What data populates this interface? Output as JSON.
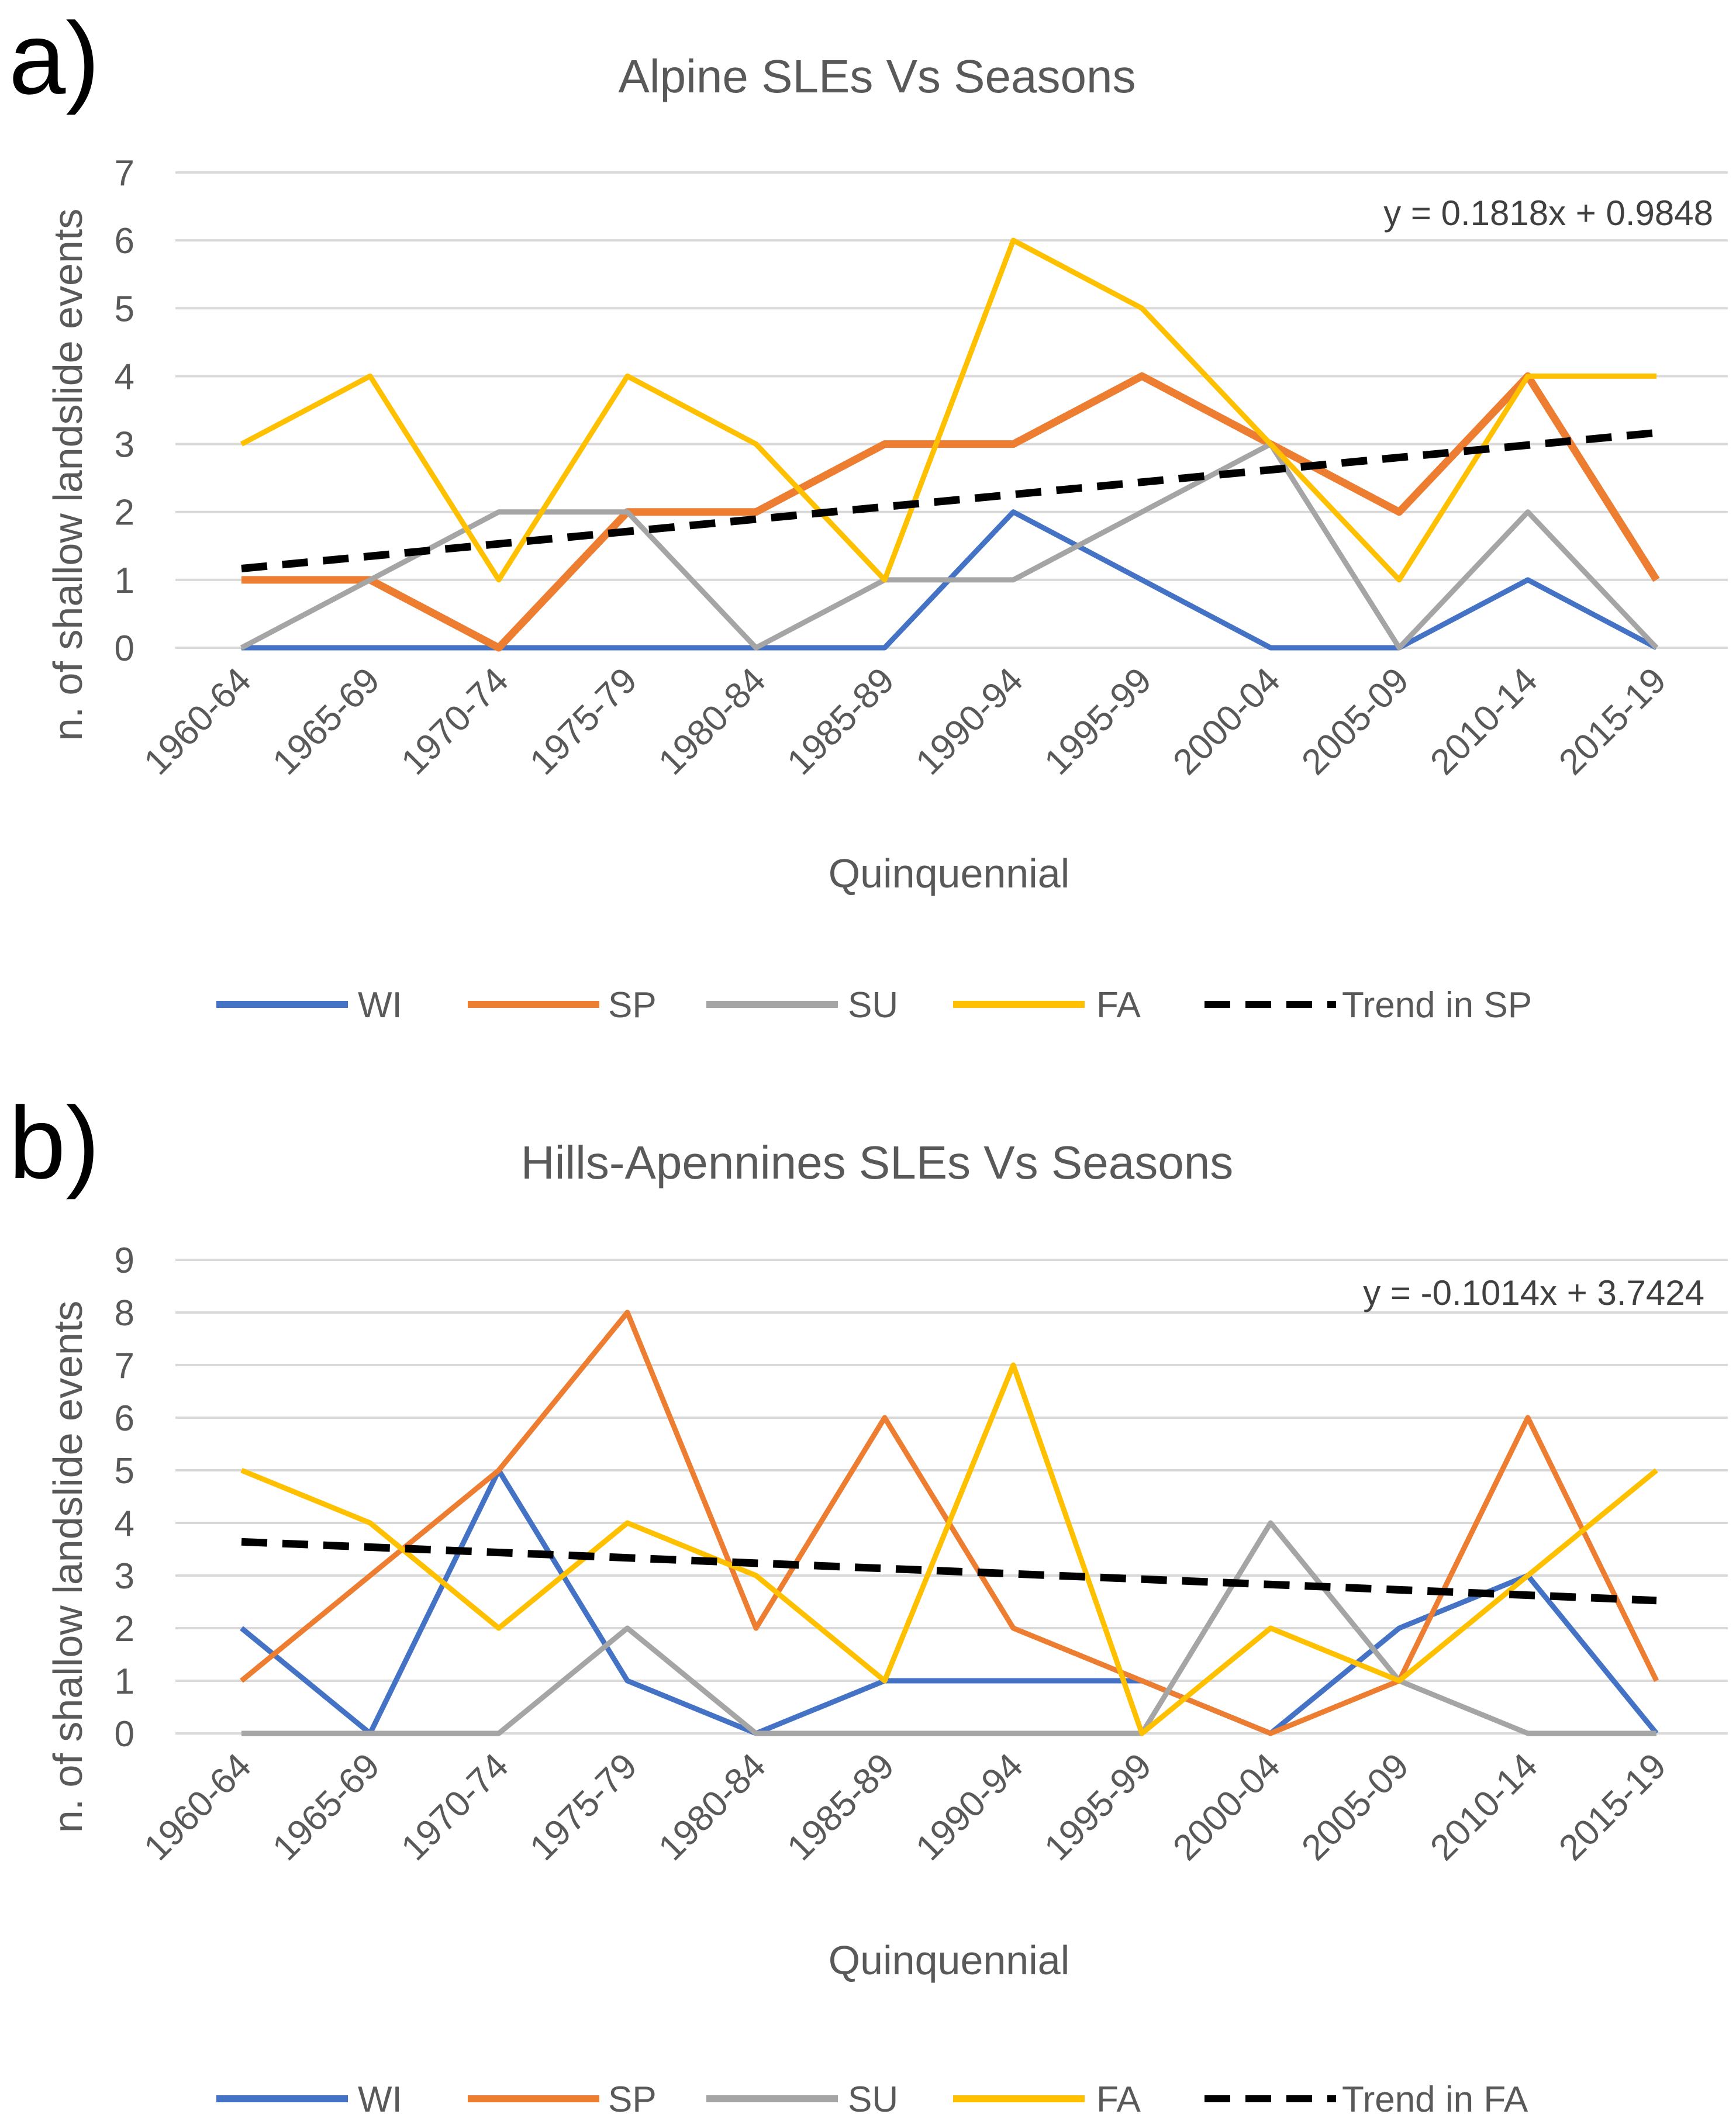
{
  "chart_data": [
    {
      "panel": "a)",
      "type": "line",
      "title": "Alpine SLEs Vs Seasons",
      "xlabel": "Quinquennial",
      "ylabel": "n. of shallow landslide events",
      "ylim": [
        0,
        7
      ],
      "yticks": [
        0,
        1,
        2,
        3,
        4,
        5,
        6,
        7
      ],
      "categories": [
        "1960-64",
        "1965-69",
        "1970-74",
        "1975-79",
        "1980-84",
        "1985-89",
        "1990-94",
        "1995-99",
        "2000-04",
        "2005-09",
        "2010-14",
        "2015-19"
      ],
      "series": [
        {
          "name": "WI",
          "color": "#4472C4",
          "values": [
            0,
            0,
            0,
            0,
            0,
            0,
            2,
            1,
            0,
            0,
            1,
            0
          ]
        },
        {
          "name": "SP",
          "color": "#ED7D31",
          "values": [
            1,
            1,
            0,
            2,
            2,
            3,
            3,
            4,
            3,
            2,
            4,
            1
          ]
        },
        {
          "name": "SU",
          "color": "#A5A5A5",
          "values": [
            0,
            1,
            2,
            2,
            0,
            1,
            1,
            2,
            3,
            0,
            2,
            0
          ]
        },
        {
          "name": "FA",
          "color": "#FFC000",
          "values": [
            3,
            4,
            1,
            4,
            3,
            1,
            6,
            5,
            3,
            1,
            4,
            4
          ]
        }
      ],
      "trend": {
        "name": "Trend in SP",
        "slope": 0.1818,
        "intercept": 0.9848,
        "color": "#000000"
      },
      "equation": "y = 0.1818x + 0.9848",
      "legend": [
        "WI",
        "SP",
        "SU",
        "FA",
        "Trend in SP"
      ]
    },
    {
      "panel": "b)",
      "type": "line",
      "title": "Hills-Apennines SLEs Vs Seasons",
      "xlabel": "Quinquennial",
      "ylabel": "n. of shallow landslide events",
      "ylim": [
        0,
        9
      ],
      "yticks": [
        0,
        1,
        2,
        3,
        4,
        5,
        6,
        7,
        8,
        9
      ],
      "categories": [
        "1960-64",
        "1965-69",
        "1970-74",
        "1975-79",
        "1980-84",
        "1985-89",
        "1990-94",
        "1995-99",
        "2000-04",
        "2005-09",
        "2010-14",
        "2015-19"
      ],
      "series": [
        {
          "name": "WI",
          "color": "#4472C4",
          "values": [
            2,
            0,
            5,
            1,
            0,
            1,
            1,
            1,
            0,
            2,
            3,
            0
          ]
        },
        {
          "name": "SP",
          "color": "#ED7D31",
          "values": [
            1,
            3,
            5,
            8,
            2,
            6,
            2,
            1,
            0,
            1,
            6,
            1
          ]
        },
        {
          "name": "SU",
          "color": "#A5A5A5",
          "values": [
            0,
            0,
            0,
            2,
            0,
            0,
            0,
            0,
            4,
            1,
            0,
            0
          ]
        },
        {
          "name": "FA",
          "color": "#FFC000",
          "values": [
            5,
            4,
            2,
            4,
            3,
            1,
            7,
            0,
            2,
            1,
            3,
            5
          ]
        }
      ],
      "trend": {
        "name": "Trend in FA",
        "slope": -0.1014,
        "intercept": 3.7424,
        "color": "#000000"
      },
      "equation": "y = -0.1014x + 3.7424",
      "legend": [
        "WI",
        "SP",
        "SU",
        "FA",
        "Trend in FA"
      ]
    }
  ]
}
